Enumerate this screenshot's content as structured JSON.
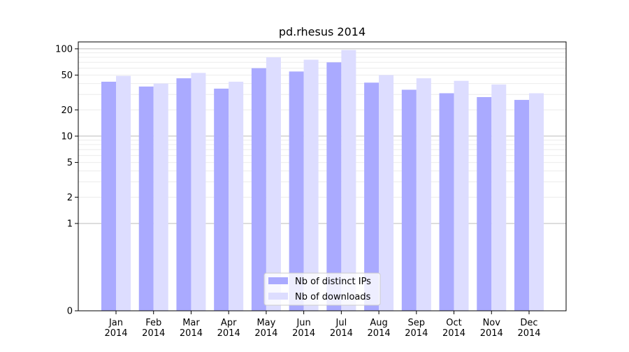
{
  "chart_data": {
    "type": "bar",
    "title": "pd.rhesus 2014",
    "xlabel": "",
    "ylabel": "",
    "yscale": "symlog",
    "ylim": [
      0,
      120
    ],
    "yticks": [
      0,
      1,
      2,
      5,
      10,
      20,
      50,
      100
    ],
    "ytick_labels": [
      "0",
      "1",
      "2",
      "5",
      "10",
      "20",
      "50",
      "100"
    ],
    "grid": true,
    "legend_position": "bottom-center",
    "categories": [
      [
        "Jan",
        "2014"
      ],
      [
        "Feb",
        "2014"
      ],
      [
        "Mar",
        "2014"
      ],
      [
        "Apr",
        "2014"
      ],
      [
        "May",
        "2014"
      ],
      [
        "Jun",
        "2014"
      ],
      [
        "Jul",
        "2014"
      ],
      [
        "Aug",
        "2014"
      ],
      [
        "Sep",
        "2014"
      ],
      [
        "Oct",
        "2014"
      ],
      [
        "Nov",
        "2014"
      ],
      [
        "Dec",
        "2014"
      ]
    ],
    "series": [
      {
        "name": "Nb of distinct IPs",
        "color": "#aaaaff",
        "values": [
          42,
          37,
          46,
          35,
          60,
          55,
          70,
          41,
          34,
          31,
          28,
          26
        ]
      },
      {
        "name": "Nb of downloads",
        "color": "#ddddff",
        "values": [
          49,
          40,
          53,
          42,
          80,
          75,
          97,
          50,
          46,
          43,
          39,
          31
        ]
      }
    ]
  }
}
